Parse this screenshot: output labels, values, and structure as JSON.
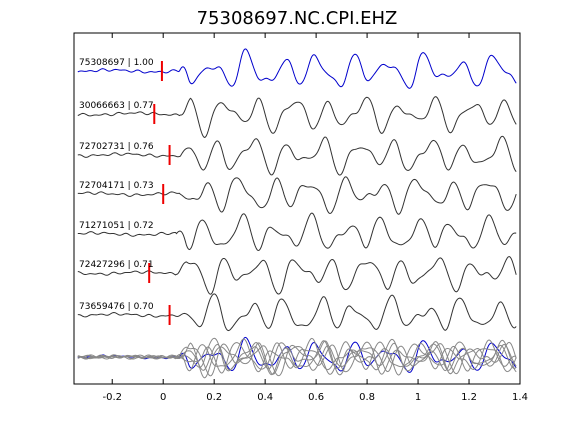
{
  "chart_data": {
    "type": "line",
    "title": "75308697.NC.CPI.EHZ",
    "xlabel": "",
    "ylabel": "",
    "xlim": [
      -0.35,
      1.4
    ],
    "x_ticks": [
      -0.2,
      0,
      0.2,
      0.4,
      0.6,
      0.8,
      1,
      1.2,
      1.4
    ],
    "x_tick_labels": [
      "-0.2",
      "0",
      "0.2",
      "0.4",
      "0.6",
      "0.8",
      "1",
      "1.2",
      "1.4"
    ],
    "grid": false,
    "colors": {
      "master": "#0000cc",
      "trace": "#333333",
      "overlay": "#888888",
      "pick": "#ee0000",
      "axis": "#000000"
    },
    "traces": [
      {
        "label": "75308697 | 1.00",
        "id": "75308697",
        "correlation": 1.0,
        "pick_time": -0.005,
        "color": "#0000cc"
      },
      {
        "label": "30066663 | 0.77",
        "id": "30066663",
        "correlation": 0.77,
        "pick_time": -0.035,
        "color": "#333333"
      },
      {
        "label": "72702731 | 0.76",
        "id": "72702731",
        "correlation": 0.76,
        "pick_time": 0.025,
        "color": "#333333"
      },
      {
        "label": "72704171 | 0.73",
        "id": "72704171",
        "correlation": 0.73,
        "pick_time": 0.0,
        "color": "#333333"
      },
      {
        "label": "71271051 | 0.72",
        "id": "71271051",
        "correlation": 0.72,
        "pick_time": null,
        "color": "#333333"
      },
      {
        "label": "72427296 | 0.71",
        "id": "72427296",
        "correlation": 0.71,
        "pick_time": -0.055,
        "color": "#333333"
      },
      {
        "label": "73659476 | 0.70",
        "id": "73659476",
        "correlation": 0.7,
        "pick_time": 0.025,
        "color": "#333333"
      }
    ],
    "stack_row": true
  }
}
